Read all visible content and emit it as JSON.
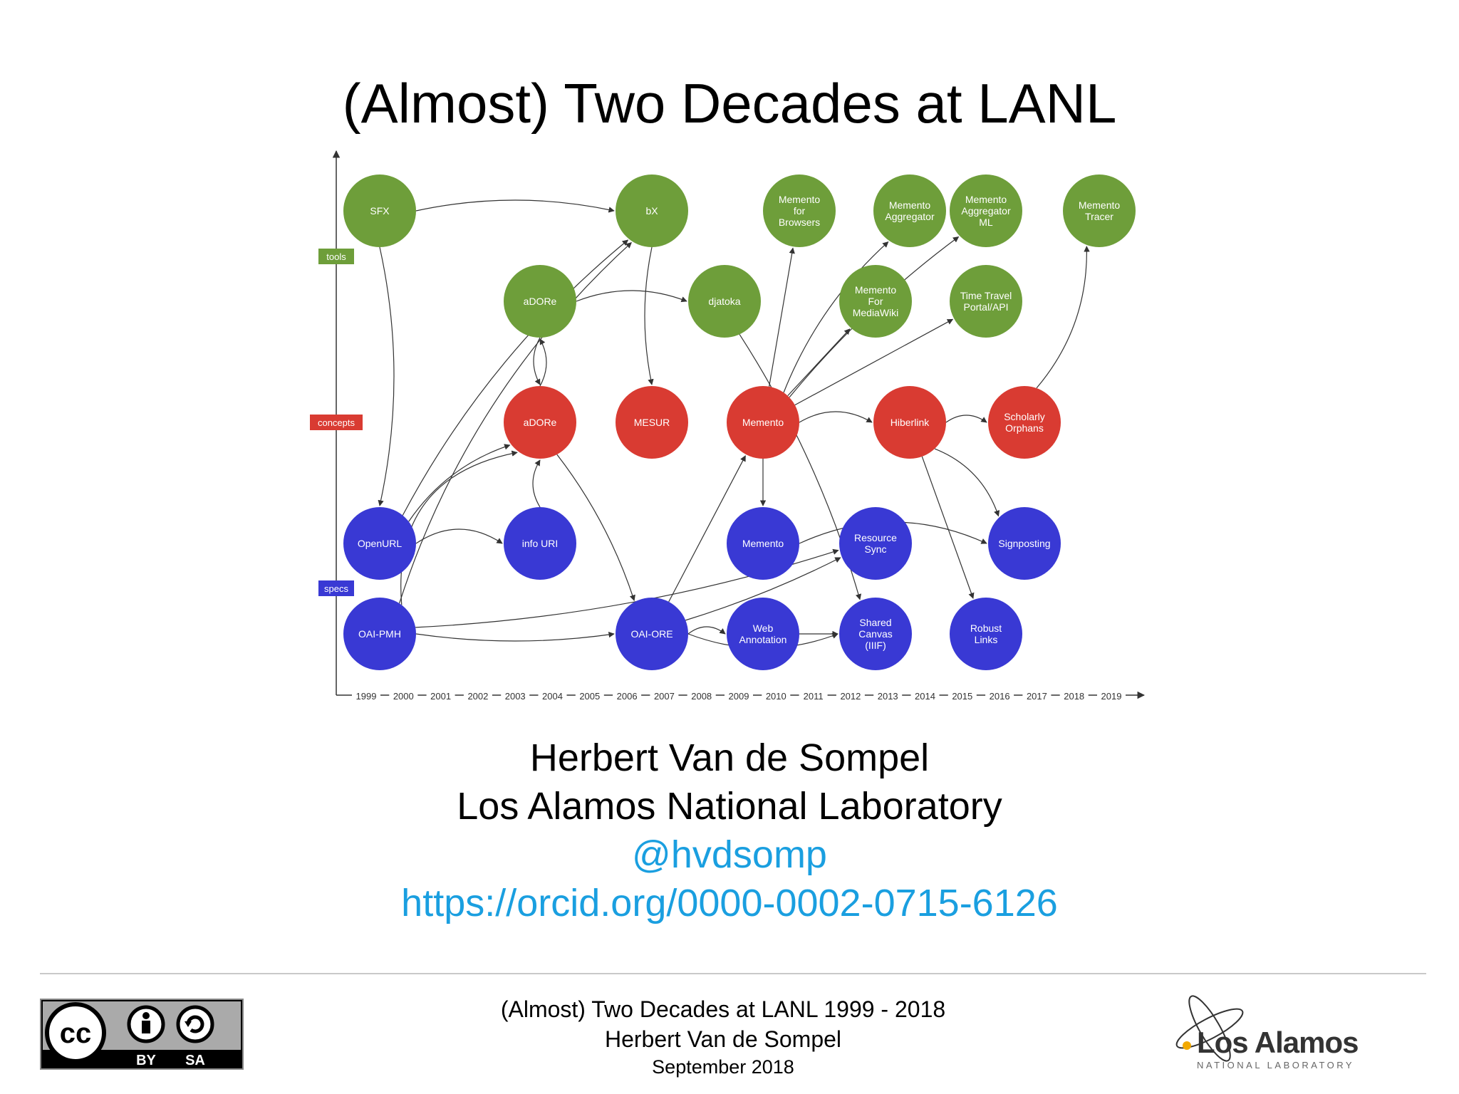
{
  "title": "(Almost) Two Decades at LANL",
  "diagram": {
    "colors": {
      "tools": "#6e9e3a",
      "concepts": "#d93b32",
      "specs": "#3939d4",
      "axis": "#333333",
      "edge": "#333333"
    },
    "lanes": [
      {
        "id": "tools",
        "label": "tools"
      },
      {
        "id": "concepts",
        "label": "concepts"
      },
      {
        "id": "specs",
        "label": "specs"
      }
    ],
    "years": [
      "1999",
      "2000",
      "2001",
      "2002",
      "2003",
      "2004",
      "2005",
      "2006",
      "2007",
      "2008",
      "2009",
      "2010",
      "2011",
      "2012",
      "2013",
      "2014",
      "2015",
      "2016",
      "2017",
      "2018",
      "2019"
    ],
    "nodes": [
      {
        "id": "sfx",
        "category": "tools",
        "label": [
          "SFX"
        ]
      },
      {
        "id": "bx",
        "category": "tools",
        "label": [
          "bX"
        ]
      },
      {
        "id": "m_browsers",
        "category": "tools",
        "label": [
          "Memento",
          "for",
          "Browsers"
        ]
      },
      {
        "id": "m_aggregator",
        "category": "tools",
        "label": [
          "Memento",
          "Aggregator"
        ]
      },
      {
        "id": "m_aggregator_ml",
        "category": "tools",
        "label": [
          "Memento",
          "Aggregator",
          "ML"
        ]
      },
      {
        "id": "m_tracer",
        "category": "tools",
        "label": [
          "Memento",
          "Tracer"
        ]
      },
      {
        "id": "adore_tool",
        "category": "tools",
        "label": [
          "aDORe"
        ]
      },
      {
        "id": "djatoka",
        "category": "tools",
        "label": [
          "djatoka"
        ]
      },
      {
        "id": "m_mediawiki",
        "category": "tools",
        "label": [
          "Memento",
          "For",
          "MediaWiki"
        ]
      },
      {
        "id": "timetravel",
        "category": "tools",
        "label": [
          "Time Travel",
          "Portal/API"
        ]
      },
      {
        "id": "adore_concept",
        "category": "concepts",
        "label": [
          "aDORe"
        ]
      },
      {
        "id": "mesur",
        "category": "concepts",
        "label": [
          "MESUR"
        ]
      },
      {
        "id": "memento_concept",
        "category": "concepts",
        "label": [
          "Memento"
        ]
      },
      {
        "id": "hiberlink",
        "category": "concepts",
        "label": [
          "Hiberlink"
        ]
      },
      {
        "id": "scholarly_orphans",
        "category": "concepts",
        "label": [
          "Scholarly",
          "Orphans"
        ]
      },
      {
        "id": "openurl",
        "category": "specs",
        "label": [
          "OpenURL"
        ]
      },
      {
        "id": "infouri",
        "category": "specs",
        "label": [
          "info URI"
        ]
      },
      {
        "id": "memento_spec",
        "category": "specs",
        "label": [
          "Memento"
        ]
      },
      {
        "id": "resourcesync",
        "category": "specs",
        "label": [
          "Resource",
          "Sync"
        ]
      },
      {
        "id": "signposting",
        "category": "specs",
        "label": [
          "Signposting"
        ]
      },
      {
        "id": "oaipmh",
        "category": "specs",
        "label": [
          "OAI-PMH"
        ]
      },
      {
        "id": "oaiore",
        "category": "specs",
        "label": [
          "OAI-ORE"
        ]
      },
      {
        "id": "webannotation",
        "category": "specs",
        "label": [
          "Web",
          "Annotation"
        ]
      },
      {
        "id": "sharedcanvas",
        "category": "specs",
        "label": [
          "Shared",
          "Canvas",
          "(IIIF)"
        ]
      },
      {
        "id": "robustlinks",
        "category": "specs",
        "label": [
          "Robust",
          "Links"
        ]
      }
    ],
    "edges": [
      {
        "from": "sfx",
        "to": "bx"
      },
      {
        "from": "sfx",
        "to": "openurl"
      },
      {
        "from": "openurl",
        "to": "bx"
      },
      {
        "from": "oaipmh",
        "to": "bx"
      },
      {
        "from": "bx",
        "to": "mesur"
      },
      {
        "from": "adore_tool",
        "to": "djatoka"
      },
      {
        "from": "adore_tool",
        "to": "adore_concept"
      },
      {
        "from": "adore_concept",
        "to": "adore_tool"
      },
      {
        "from": "openurl",
        "to": "adore_concept"
      },
      {
        "from": "openurl",
        "to": "infouri"
      },
      {
        "from": "infouri",
        "to": "adore_concept"
      },
      {
        "from": "adore_concept",
        "to": "oaiore"
      },
      {
        "from": "oaipmh",
        "to": "adore_concept"
      },
      {
        "from": "djatoka",
        "to": "sharedcanvas"
      },
      {
        "from": "memento_concept",
        "to": "m_browsers"
      },
      {
        "from": "memento_concept",
        "to": "m_aggregator"
      },
      {
        "from": "memento_concept",
        "to": "m_aggregator_ml"
      },
      {
        "from": "memento_concept",
        "to": "m_mediawiki"
      },
      {
        "from": "memento_concept",
        "to": "timetravel"
      },
      {
        "from": "memento_concept",
        "to": "memento_spec"
      },
      {
        "from": "memento_concept",
        "to": "hiberlink"
      },
      {
        "from": "oaiore",
        "to": "memento_concept"
      },
      {
        "from": "oaiore",
        "to": "webannotation"
      },
      {
        "from": "oaiore",
        "to": "sharedcanvas"
      },
      {
        "from": "oaipmh",
        "to": "oaiore"
      },
      {
        "from": "oaipmh",
        "to": "resourcesync"
      },
      {
        "from": "oaiore",
        "to": "resourcesync"
      },
      {
        "from": "memento_spec",
        "to": "signposting"
      },
      {
        "from": "webannotation",
        "to": "sharedcanvas"
      },
      {
        "from": "hiberlink",
        "to": "scholarly_orphans"
      },
      {
        "from": "hiberlink",
        "to": "robustlinks"
      },
      {
        "from": "hiberlink",
        "to": "signposting"
      },
      {
        "from": "scholarly_orphans",
        "to": "m_tracer"
      }
    ]
  },
  "author": "Herbert Van de Sompel",
  "affiliation": "Los Alamos National Laboratory",
  "handle": "@hvdsomp",
  "orcid": "https://orcid.org/0000-0002-0715-6126",
  "footer": {
    "line1": "(Almost) Two Decades at LANL 1999 - 2018",
    "line2": "Herbert Van de Sompel",
    "line3": "September 2018"
  },
  "license": {
    "cc": "cc",
    "by": "BY",
    "sa": "SA",
    "icons": [
      "creative-commons-icon",
      "attribution-icon",
      "share-alike-icon"
    ]
  },
  "logo": {
    "name": "Los Alamos",
    "subtitle": "NATIONAL LABORATORY",
    "colors": {
      "dot": "#f2a900",
      "text": "#333333"
    }
  }
}
